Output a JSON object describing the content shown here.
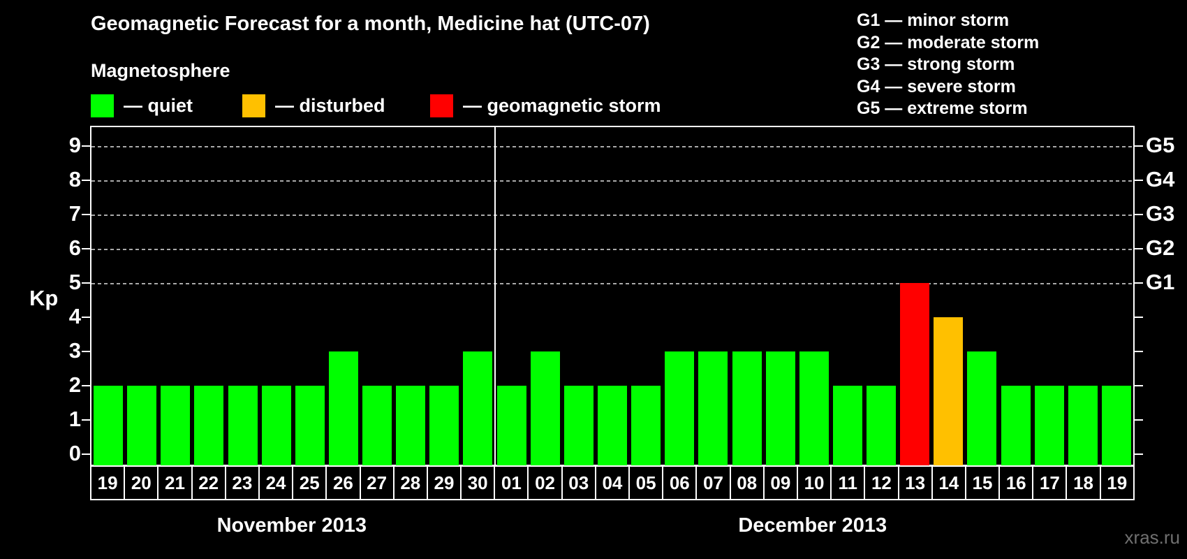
{
  "title": "Geomagnetic Forecast for a month, Medicine hat (UTC-07)",
  "subtitle": "Magnetosphere",
  "legend": {
    "items": [
      {
        "key": "quiet",
        "label": "— quiet",
        "color": "#00ff00"
      },
      {
        "key": "disturbed",
        "label": "— disturbed",
        "color": "#ffc000"
      },
      {
        "key": "storm",
        "label": "— geomagnetic storm",
        "color": "#ff0000"
      }
    ]
  },
  "g_legend": [
    "G1 — minor storm",
    "G2 — moderate storm",
    "G3 — strong storm",
    "G4 — severe storm",
    "G5 — extreme storm"
  ],
  "colors": {
    "quiet": "#00ff00",
    "disturbed": "#ffc000",
    "storm": "#ff0000",
    "grid": "#aaaaaa",
    "axis": "#ffffff",
    "text": "#ffffff",
    "watermark": "#707070",
    "background": "#000000"
  },
  "watermark": "xras.ru",
  "chart_data": {
    "type": "bar",
    "title": "Geomagnetic Forecast for a month, Medicine hat (UTC-07)",
    "ylabel": "Kp",
    "ylim": [
      0,
      9
    ],
    "yticks": [
      0,
      1,
      2,
      3,
      4,
      5,
      6,
      7,
      8,
      9
    ],
    "grid": {
      "dashed_at_kp": [
        5,
        6,
        7,
        8,
        9
      ],
      "style": "dashed",
      "on": true
    },
    "right_axis": [
      {
        "kp": 5,
        "label": "G1"
      },
      {
        "kp": 6,
        "label": "G2"
      },
      {
        "kp": 7,
        "label": "G3"
      },
      {
        "kp": 8,
        "label": "G4"
      },
      {
        "kp": 9,
        "label": "G5"
      }
    ],
    "color_rules": {
      "quiet_kp_max": 3,
      "disturbed_kp": 4,
      "storm_kp_min": 5
    },
    "legend_position": "top-left",
    "months": [
      {
        "label": "November 2013",
        "days": [
          "19",
          "20",
          "21",
          "22",
          "23",
          "24",
          "25",
          "26",
          "27",
          "28",
          "29",
          "30"
        ],
        "values": [
          2,
          2,
          2,
          2,
          2,
          2,
          2,
          3,
          2,
          2,
          2,
          3
        ]
      },
      {
        "label": "December 2013",
        "days": [
          "01",
          "02",
          "03",
          "04",
          "05",
          "06",
          "07",
          "08",
          "09",
          "10",
          "11",
          "12",
          "13",
          "14",
          "15",
          "16",
          "17",
          "18",
          "19"
        ],
        "values": [
          2,
          3,
          2,
          2,
          2,
          3,
          3,
          3,
          3,
          3,
          2,
          2,
          5,
          4,
          3,
          2,
          2,
          2,
          2
        ]
      }
    ]
  }
}
